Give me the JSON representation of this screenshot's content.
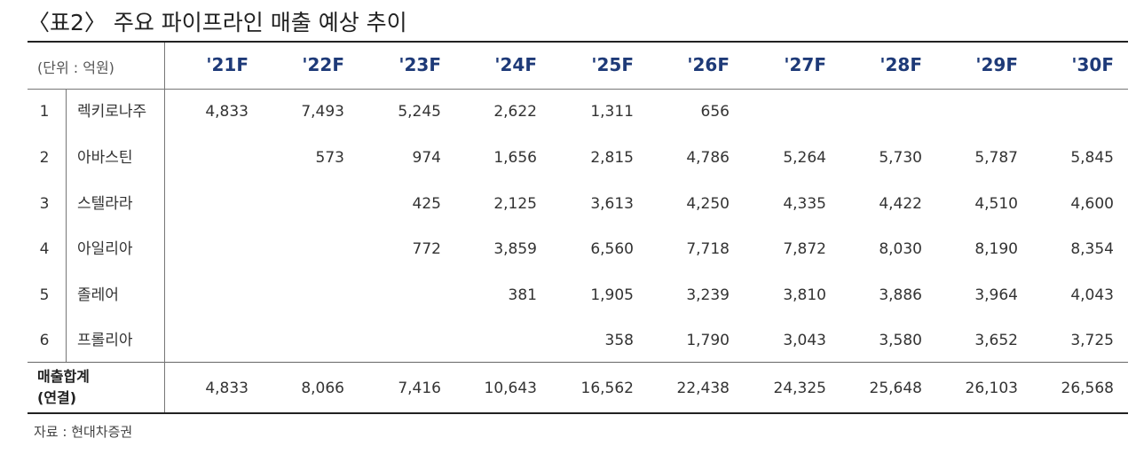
{
  "title": "〈표2〉 주요 파이프라인 매출 예상 추이",
  "unit_label": "(단위 : 억원)",
  "years": [
    "'21F",
    "'22F",
    "'23F",
    "'24F",
    "'25F",
    "'26F",
    "'27F",
    "'28F",
    "'29F",
    "'30F"
  ],
  "rows": [
    {
      "idx": "1",
      "name": "렉키로나주",
      "values": [
        "4,833",
        "7,493",
        "5,245",
        "2,622",
        "1,311",
        "656",
        "",
        "",
        "",
        ""
      ]
    },
    {
      "idx": "2",
      "name": "아바스틴",
      "values": [
        "",
        "573",
        "974",
        "1,656",
        "2,815",
        "4,786",
        "5,264",
        "5,730",
        "5,787",
        "5,845"
      ]
    },
    {
      "idx": "3",
      "name": "스텔라라",
      "values": [
        "",
        "",
        "425",
        "2,125",
        "3,613",
        "4,250",
        "4,335",
        "4,422",
        "4,510",
        "4,600"
      ]
    },
    {
      "idx": "4",
      "name": "아일리아",
      "values": [
        "",
        "",
        "772",
        "3,859",
        "6,560",
        "7,718",
        "7,872",
        "8,030",
        "8,190",
        "8,354"
      ]
    },
    {
      "idx": "5",
      "name": "졸레어",
      "values": [
        "",
        "",
        "",
        "381",
        "1,905",
        "3,239",
        "3,810",
        "3,886",
        "3,964",
        "4,043"
      ]
    },
    {
      "idx": "6",
      "name": "프롤리아",
      "values": [
        "",
        "",
        "",
        "",
        "358",
        "1,790",
        "3,043",
        "3,580",
        "3,652",
        "3,725"
      ]
    }
  ],
  "total": {
    "label_line1": "매출합계",
    "label_line2": "(연결)",
    "values": [
      "4,833",
      "8,066",
      "7,416",
      "10,643",
      "16,562",
      "22,438",
      "24,325",
      "25,648",
      "26,103",
      "26,568"
    ]
  },
  "source": "자료 : 현대차증권"
}
